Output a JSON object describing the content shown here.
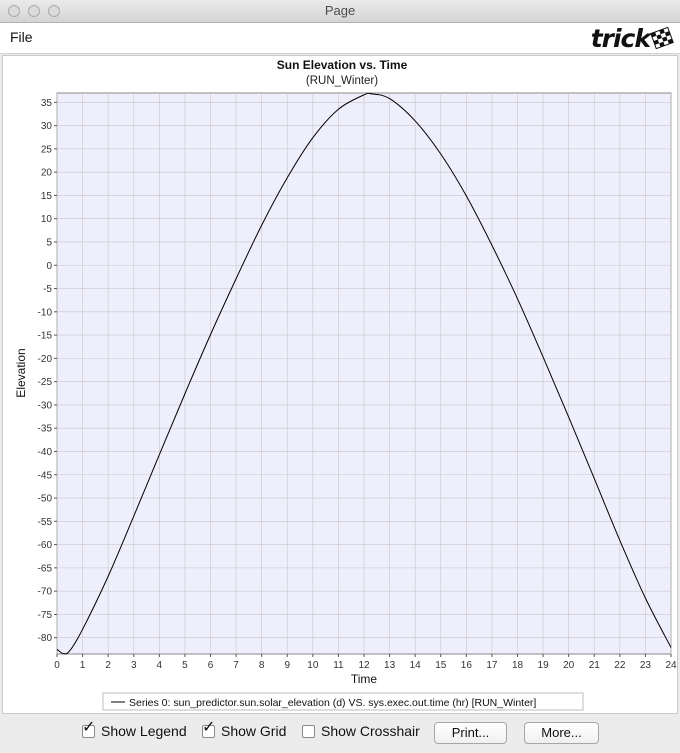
{
  "window": {
    "title": "Page"
  },
  "menu": {
    "file": "File"
  },
  "logo": {
    "text": "trick"
  },
  "controls": {
    "show_legend": {
      "label": "Show Legend",
      "checked": true
    },
    "show_grid": {
      "label": "Show Grid",
      "checked": true
    },
    "show_crosshair": {
      "label": "Show Crosshair",
      "checked": false
    },
    "print_label": "Print...",
    "more_label": "More..."
  },
  "chart_data": {
    "type": "line",
    "title": "Sun Elevation vs. Time",
    "subtitle": "(RUN_Winter)",
    "xlabel": "Time",
    "ylabel": "Elevation",
    "xlim": [
      0,
      24
    ],
    "ylim": [
      -83.5,
      37
    ],
    "xticks": [
      0,
      1,
      2,
      3,
      4,
      5,
      6,
      7,
      8,
      9,
      10,
      11,
      12,
      13,
      14,
      15,
      16,
      17,
      18,
      19,
      20,
      21,
      22,
      23,
      24
    ],
    "yticks": [
      35,
      30,
      25,
      20,
      15,
      10,
      5,
      0,
      -5,
      -10,
      -15,
      -20,
      -25,
      -30,
      -35,
      -40,
      -45,
      -50,
      -55,
      -60,
      -65,
      -70,
      -75,
      -80
    ],
    "grid": true,
    "legend_position": "bottom",
    "plot_background": "#eeeefc",
    "line_color": "#000000",
    "series": [
      {
        "name": "Series 0: sun_predictor.sun.solar_elevation (d) VS. sys.exec.out.time (hr) [RUN_Winter]",
        "x": [
          0,
          0.25,
          0.5,
          1,
          2,
          3,
          4,
          5,
          6,
          7,
          8,
          9,
          10,
          11,
          12,
          12.3,
          13,
          14,
          15,
          16,
          17,
          18,
          19,
          20,
          21,
          22,
          23,
          24
        ],
        "y": [
          -82.5,
          -83.4,
          -82.8,
          -78.2,
          -66.8,
          -53.9,
          -40.7,
          -27.6,
          -14.9,
          -2.9,
          8.6,
          18.8,
          27.4,
          33.5,
          36.6,
          36.8,
          35.8,
          31.0,
          23.9,
          14.9,
          4.3,
          -7.2,
          -19.7,
          -32.6,
          -45.8,
          -59.1,
          -71.5,
          -82.1
        ]
      }
    ]
  }
}
